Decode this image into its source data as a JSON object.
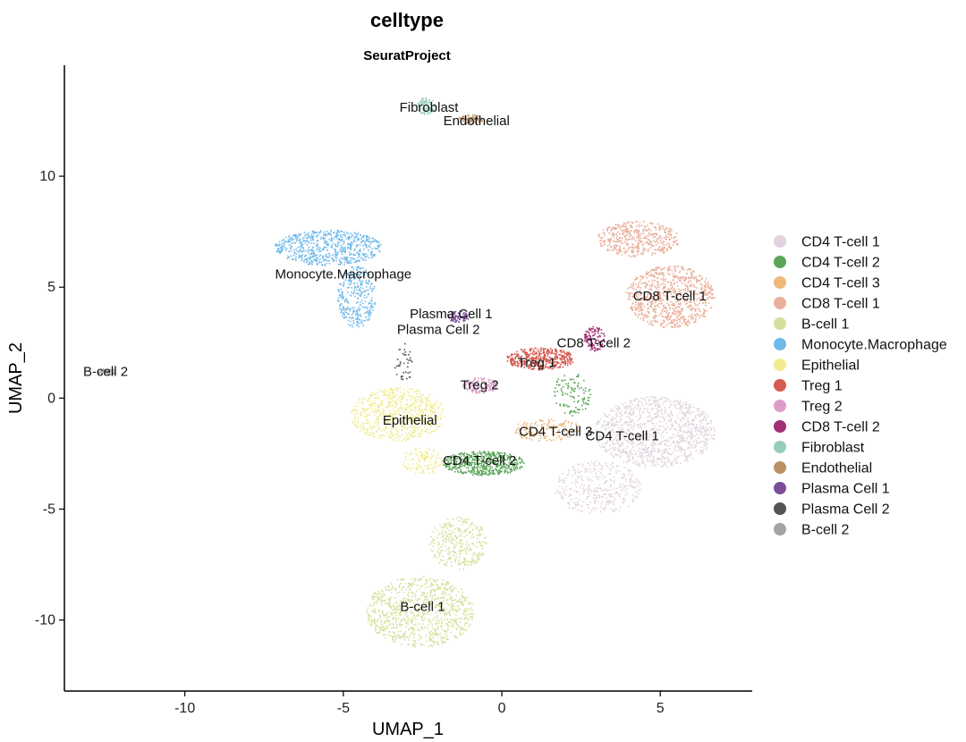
{
  "chart_data": {
    "type": "scatter",
    "title": "celltype",
    "subtitle": "SeuratProject",
    "xlabel": "UMAP_1",
    "ylabel": "UMAP_2",
    "xlim": [
      -13.8,
      7.9
    ],
    "ylim": [
      -13.2,
      15.0
    ],
    "xticks": [
      -10,
      -5,
      0,
      5
    ],
    "yticks": [
      -10,
      -5,
      0,
      5,
      10
    ],
    "grid": false,
    "legend_position": "right",
    "clusters": [
      {
        "name": "CD4 T-cell 1",
        "color": "#E2D3DE",
        "label_x": 3.8,
        "label_y": -1.7,
        "blobs": [
          {
            "cx": 4.8,
            "cy": -1.5,
            "rx": 1.9,
            "ry": 1.6,
            "n": 1100
          },
          {
            "cx": 3.0,
            "cy": -4.0,
            "rx": 1.4,
            "ry": 1.2,
            "n": 350
          }
        ]
      },
      {
        "name": "CD4 T-cell 2",
        "color": "#5BA55A",
        "label_x": -0.7,
        "label_y": -2.8,
        "blobs": [
          {
            "cx": -0.6,
            "cy": -2.9,
            "rx": 1.3,
            "ry": 0.55,
            "n": 520
          },
          {
            "cx": 2.2,
            "cy": 0.2,
            "rx": 0.6,
            "ry": 1.0,
            "n": 110
          }
        ]
      },
      {
        "name": "CD4 T-cell 3",
        "color": "#EEB97B",
        "label_x": 1.7,
        "label_y": -1.5,
        "blobs": [
          {
            "cx": 1.4,
            "cy": -1.4,
            "rx": 1.1,
            "ry": 0.5,
            "n": 160
          }
        ]
      },
      {
        "name": "CD8 T-cell 1",
        "color": "#EAAF9A",
        "label_x": 5.3,
        "label_y": 4.6,
        "blobs": [
          {
            "cx": 5.3,
            "cy": 4.6,
            "rx": 1.4,
            "ry": 1.4,
            "n": 800
          },
          {
            "cx": 4.3,
            "cy": 7.2,
            "rx": 1.3,
            "ry": 0.8,
            "n": 450
          }
        ]
      },
      {
        "name": "B-cell 1",
        "color": "#D5E09B",
        "label_x": -2.5,
        "label_y": -9.4,
        "blobs": [
          {
            "cx": -2.6,
            "cy": -9.6,
            "rx": 1.7,
            "ry": 1.6,
            "n": 850
          },
          {
            "cx": -1.4,
            "cy": -6.5,
            "rx": 0.9,
            "ry": 1.2,
            "n": 300
          }
        ]
      },
      {
        "name": "Monocyte.Macrophage",
        "color": "#70BAEB",
        "label_x": -5.0,
        "label_y": 5.6,
        "blobs": [
          {
            "cx": -5.5,
            "cy": 6.8,
            "rx": 1.7,
            "ry": 0.8,
            "n": 650
          },
          {
            "cx": -4.6,
            "cy": 4.6,
            "rx": 0.6,
            "ry": 1.4,
            "n": 300
          }
        ]
      },
      {
        "name": "Epithelial",
        "color": "#F2EC8E",
        "label_x": -2.9,
        "label_y": -1.0,
        "blobs": [
          {
            "cx": -3.3,
            "cy": -0.7,
            "rx": 1.5,
            "ry": 1.2,
            "n": 650
          },
          {
            "cx": -2.5,
            "cy": -2.8,
            "rx": 0.7,
            "ry": 0.6,
            "n": 120
          }
        ]
      },
      {
        "name": "Treg 1",
        "color": "#D55A50",
        "label_x": 1.1,
        "label_y": 1.6,
        "blobs": [
          {
            "cx": 1.2,
            "cy": 1.8,
            "rx": 1.1,
            "ry": 0.5,
            "n": 420
          }
        ]
      },
      {
        "name": "Treg 2",
        "color": "#DE9CCB",
        "label_x": -0.7,
        "label_y": 0.6,
        "blobs": [
          {
            "cx": -0.7,
            "cy": 0.6,
            "rx": 0.55,
            "ry": 0.35,
            "n": 130
          }
        ]
      },
      {
        "name": "CD8 T-cell 2",
        "color": "#A13077",
        "label_x": 2.9,
        "label_y": 2.5,
        "blobs": [
          {
            "cx": 2.9,
            "cy": 2.7,
            "rx": 0.35,
            "ry": 0.55,
            "n": 120
          }
        ]
      },
      {
        "name": "Fibroblast",
        "color": "#96CDB8",
        "label_x": -2.3,
        "label_y": 13.1,
        "blobs": [
          {
            "cx": -2.4,
            "cy": 13.2,
            "rx": 0.28,
            "ry": 0.4,
            "n": 90
          }
        ]
      },
      {
        "name": "Endothelial",
        "color": "#BA9263",
        "label_x": -0.8,
        "label_y": 12.5,
        "blobs": [
          {
            "cx": -1.0,
            "cy": 12.6,
            "rx": 0.4,
            "ry": 0.2,
            "n": 80
          }
        ]
      },
      {
        "name": "Plasma Cell 1",
        "color": "#7B4D98",
        "label_x": -1.6,
        "label_y": 3.8,
        "blobs": [
          {
            "cx": -1.4,
            "cy": 3.7,
            "rx": 0.35,
            "ry": 0.25,
            "n": 80
          }
        ]
      },
      {
        "name": "Plasma Cell 2",
        "color": "#555555",
        "label_x": -2.0,
        "label_y": 3.1,
        "blobs": [
          {
            "cx": -3.1,
            "cy": 1.6,
            "rx": 0.3,
            "ry": 0.9,
            "n": 40
          }
        ]
      },
      {
        "name": "B-cell 2",
        "color": "#A4A4A4",
        "label_x": -12.5,
        "label_y": 1.2,
        "blobs": [
          {
            "cx": -12.5,
            "cy": 1.2,
            "rx": 0.3,
            "ry": 0.15,
            "n": 60
          }
        ]
      }
    ]
  }
}
